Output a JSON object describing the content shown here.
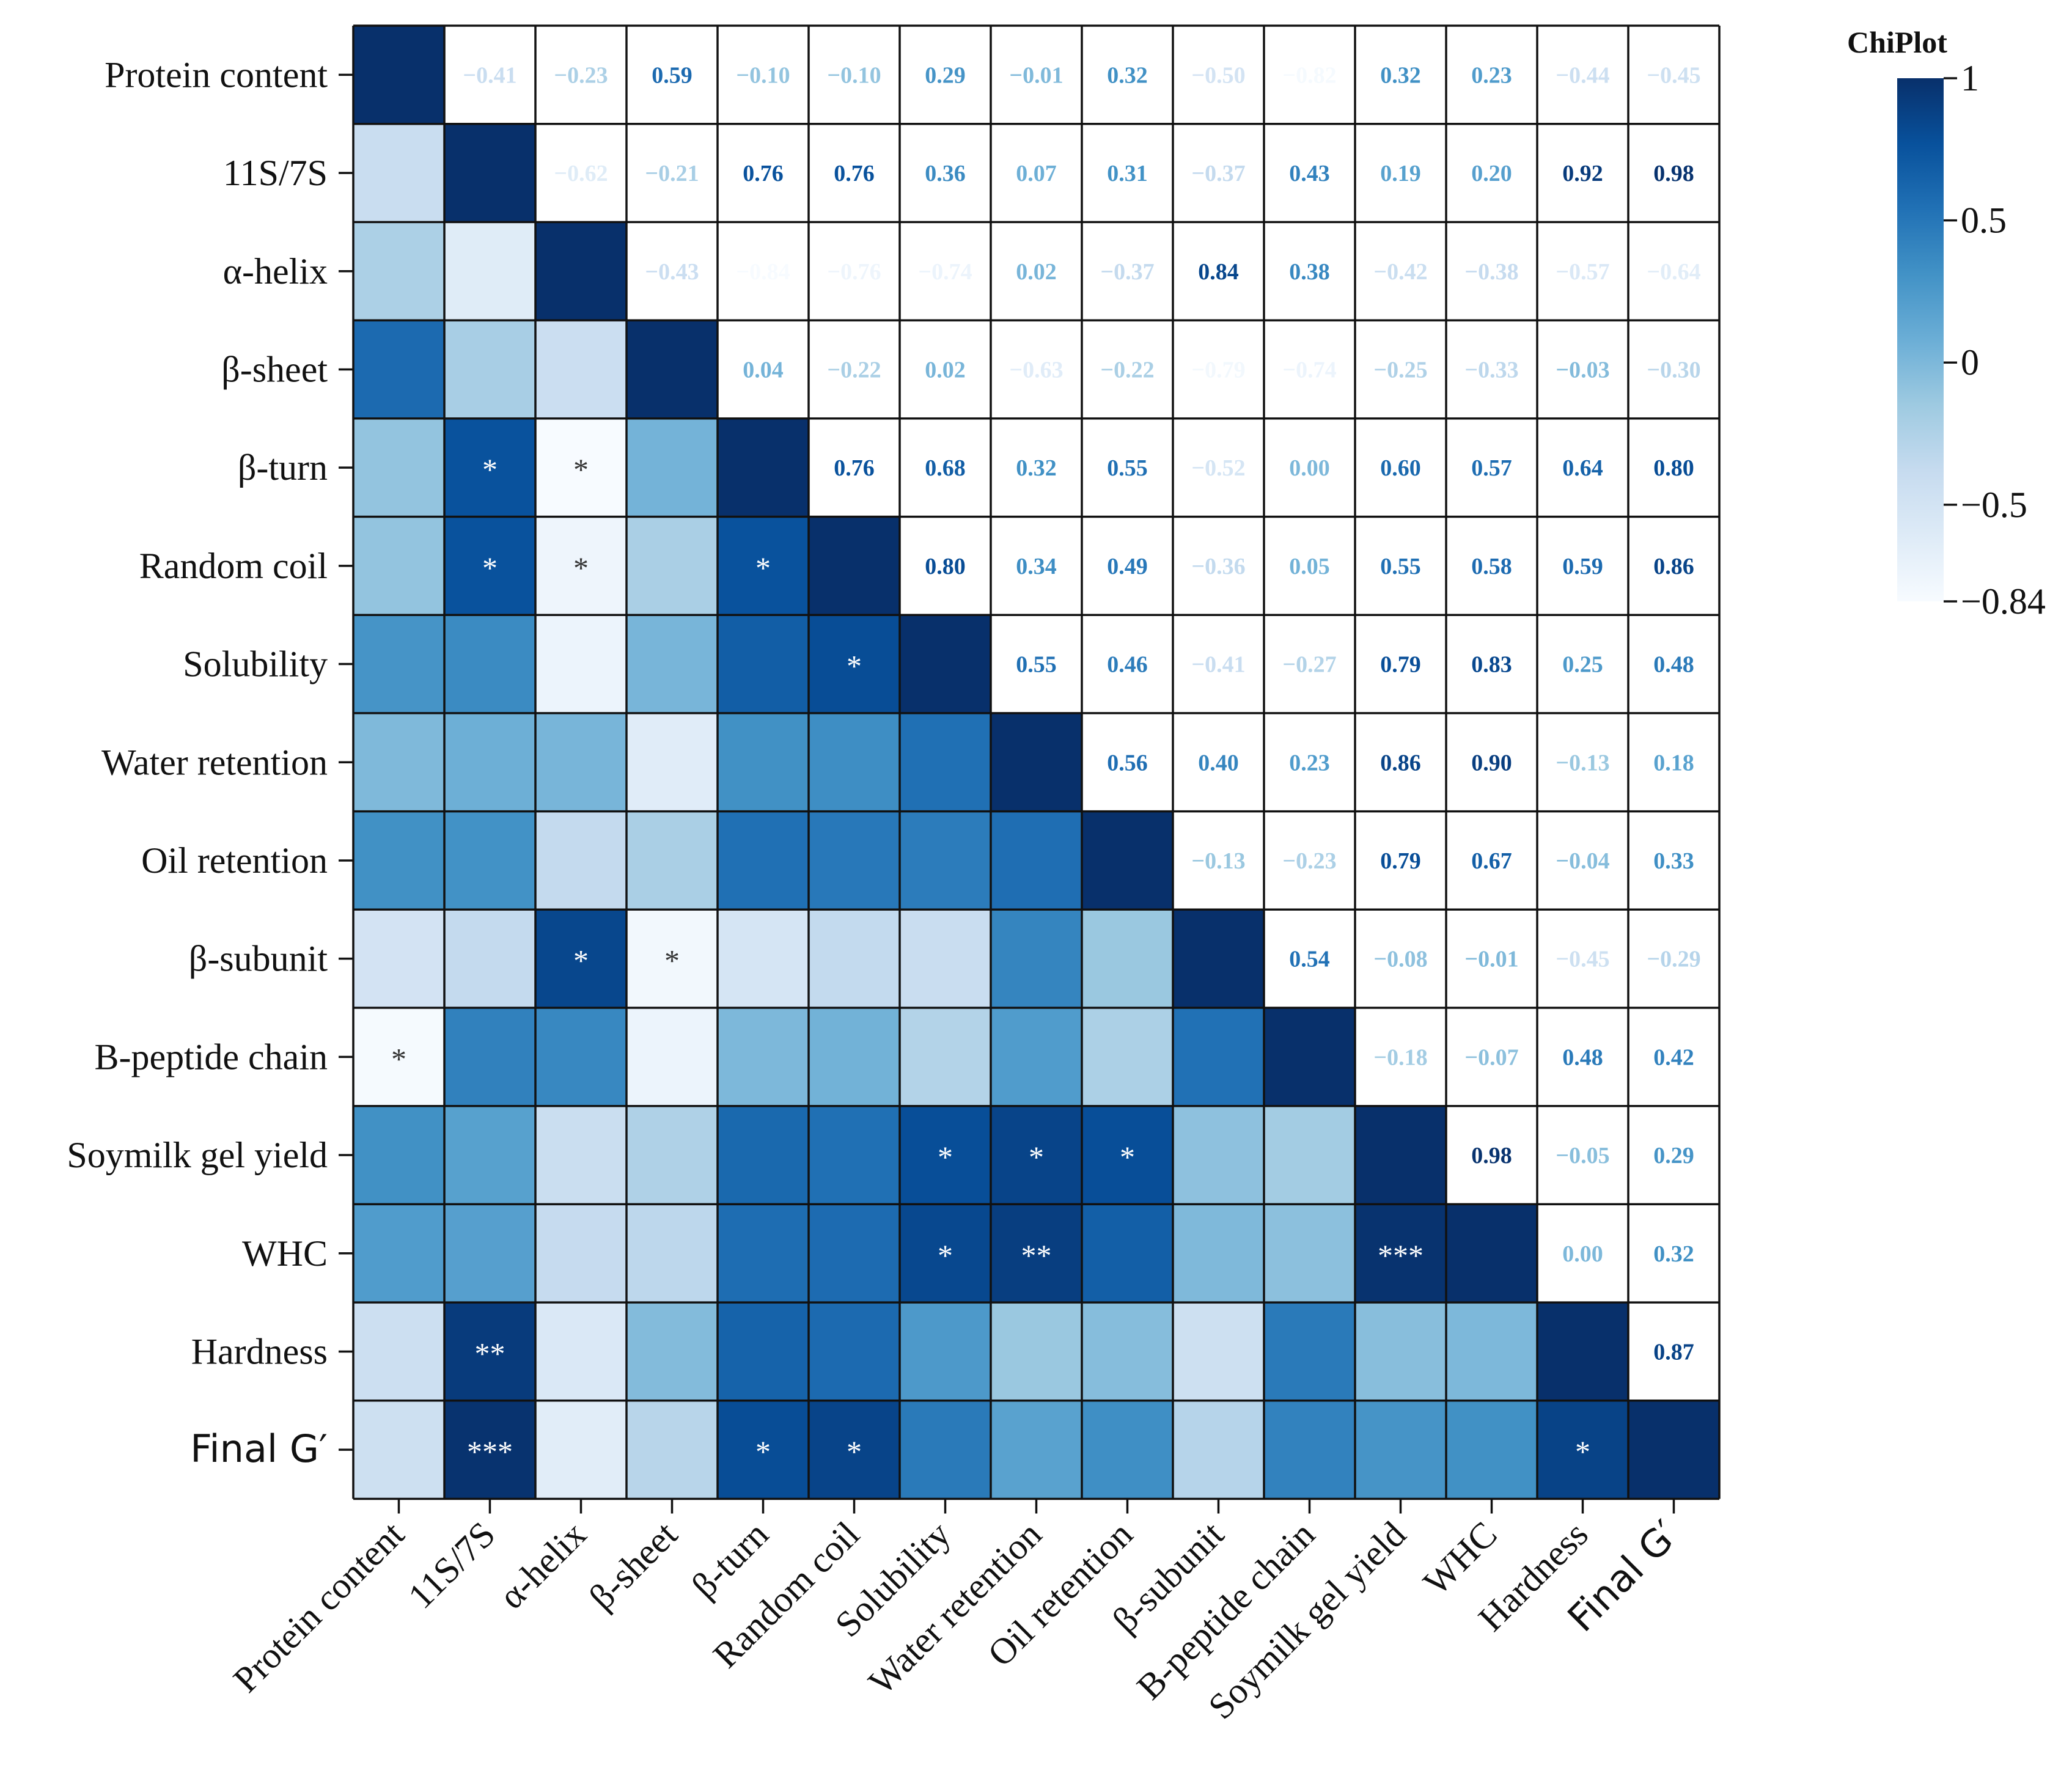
{
  "chart_data": {
    "type": "heatmap",
    "title": "ChiPlot",
    "variables": [
      "Protein content",
      "11S/7S",
      "α-helix",
      "β-sheet",
      "β-turn",
      "Random coil",
      "Solubility",
      "Water retention",
      "Oil retention",
      "β-subunit",
      "B-peptide chain",
      "Soymilk gel yield",
      "WHC",
      "Hardness",
      "Final G′"
    ],
    "upper_triangle_labels": [
      [
        "",
        "−0.41",
        "−0.23",
        "0.59",
        "−0.10",
        "−0.10",
        "0.29",
        "−0.01",
        "0.32",
        "−0.50",
        "−0.82",
        "0.32",
        "0.23",
        "−0.44",
        "−0.45"
      ],
      [
        "",
        "",
        "−0.62",
        "−0.21",
        "0.76",
        "0.76",
        "0.36",
        "0.07",
        "0.31",
        "−0.37",
        "0.43",
        "0.19",
        "0.20",
        "0.92",
        "0.98"
      ],
      [
        "",
        "",
        "",
        "−0.43",
        "−0.84",
        "−0.76",
        "−0.74",
        "0.02",
        "−0.37",
        "0.84",
        "0.38",
        "−0.42",
        "−0.38",
        "−0.57",
        "−0.64"
      ],
      [
        "",
        "",
        "",
        "",
        "0.04",
        "−0.22",
        "0.02",
        "−0.63",
        "−0.22",
        "−0.79",
        "−0.74",
        "−0.25",
        "−0.33",
        "−0.03",
        "−0.30"
      ],
      [
        "",
        "",
        "",
        "",
        "",
        "0.76",
        "0.68",
        "0.32",
        "0.55",
        "−0.52",
        "0.00",
        "0.60",
        "0.57",
        "0.64",
        "0.80"
      ],
      [
        "",
        "",
        "",
        "",
        "",
        "",
        "0.80",
        "0.34",
        "0.49",
        "−0.36",
        "0.05",
        "0.55",
        "0.58",
        "0.59",
        "0.86"
      ],
      [
        "",
        "",
        "",
        "",
        "",
        "",
        "",
        "0.55",
        "0.46",
        "−0.41",
        "−0.27",
        "0.79",
        "0.83",
        "0.25",
        "0.48"
      ],
      [
        "",
        "",
        "",
        "",
        "",
        "",
        "",
        "",
        "0.56",
        "0.40",
        "0.23",
        "0.86",
        "0.90",
        "−0.13",
        "0.18"
      ],
      [
        "",
        "",
        "",
        "",
        "",
        "",
        "",
        "",
        "",
        "−0.13",
        "−0.23",
        "0.79",
        "0.67",
        "−0.04",
        "0.33"
      ],
      [
        "",
        "",
        "",
        "",
        "",
        "",
        "",
        "",
        "",
        "",
        "0.54",
        "−0.08",
        "−0.01",
        "−0.45",
        "−0.29"
      ],
      [
        "",
        "",
        "",
        "",
        "",
        "",
        "",
        "",
        "",
        "",
        "",
        "−0.18",
        "−0.07",
        "0.48",
        "0.42"
      ],
      [
        "",
        "",
        "",
        "",
        "",
        "",
        "",
        "",
        "",
        "",
        "",
        "",
        "0.98",
        "−0.05",
        "0.29"
      ],
      [
        "",
        "",
        "",
        "",
        "",
        "",
        "",
        "",
        "",
        "",
        "",
        "",
        "",
        "0.00",
        "0.32"
      ],
      [
        "",
        "",
        "",
        "",
        "",
        "",
        "",
        "",
        "",
        "",
        "",
        "",
        "",
        "",
        "0.87"
      ],
      [
        "",
        "",
        "",
        "",
        "",
        "",
        "",
        "",
        "",
        "",
        "",
        "",
        "",
        "",
        ""
      ]
    ],
    "significance": [
      [
        "",
        "",
        "",
        "",
        "",
        "",
        "",
        "",
        "",
        "",
        "",
        "",
        "",
        "",
        ""
      ],
      [
        "",
        "",
        "",
        "",
        "",
        "",
        "",
        "",
        "",
        "",
        "",
        "",
        "",
        "",
        ""
      ],
      [
        "",
        "",
        "",
        "",
        "",
        "",
        "",
        "",
        "",
        "",
        "",
        "",
        "",
        "",
        ""
      ],
      [
        "",
        "",
        "",
        "",
        "",
        "",
        "",
        "",
        "",
        "",
        "",
        "",
        "",
        "",
        ""
      ],
      [
        "",
        "*",
        "*",
        "",
        "",
        "",
        "",
        "",
        "",
        "",
        "",
        "",
        "",
        "",
        ""
      ],
      [
        "",
        "*",
        "*",
        "",
        "*",
        "",
        "",
        "",
        "",
        "",
        "",
        "",
        "",
        "",
        ""
      ],
      [
        "",
        "",
        "",
        "",
        "",
        "*",
        "",
        "",
        "",
        "",
        "",
        "",
        "",
        "",
        ""
      ],
      [
        "",
        "",
        "",
        "",
        "",
        "",
        "",
        "",
        "",
        "",
        "",
        "",
        "",
        "",
        ""
      ],
      [
        "",
        "",
        "",
        "",
        "",
        "",
        "",
        "",
        "",
        "",
        "",
        "",
        "",
        "",
        ""
      ],
      [
        "",
        "",
        "*",
        "*",
        "",
        "",
        "",
        "",
        "",
        "",
        "",
        "",
        "",
        "",
        ""
      ],
      [
        "*",
        "",
        "",
        "",
        "",
        "",
        "",
        "",
        "",
        "",
        "",
        "",
        "",
        "",
        ""
      ],
      [
        "",
        "",
        "",
        "",
        "",
        "",
        "*",
        "*",
        "*",
        "",
        "",
        "",
        "",
        "",
        ""
      ],
      [
        "",
        "",
        "",
        "",
        "",
        "",
        "*",
        "**",
        "",
        "",
        "",
        "***",
        "",
        "",
        ""
      ],
      [
        "",
        "**",
        "",
        "",
        "",
        "",
        "",
        "",
        "",
        "",
        "",
        "",
        "",
        "",
        ""
      ],
      [
        "",
        "***",
        "",
        "",
        "*",
        "*",
        "",
        "",
        "",
        "",
        "",
        "",
        "",
        "*",
        ""
      ]
    ],
    "color_scale": {
      "min": -0.84,
      "max": 1,
      "ticks": [
        {
          "value": 1,
          "label": "1"
        },
        {
          "value": 0.5,
          "label": "0.5"
        },
        {
          "value": 0,
          "label": "0"
        },
        {
          "value": -0.5,
          "label": "−0.5"
        },
        {
          "value": -0.84,
          "label": "−0.84"
        }
      ],
      "colors": [
        "#f7fbff",
        "#deebf7",
        "#c6dbef",
        "#9ecae1",
        "#6baed6",
        "#4292c6",
        "#2171b5",
        "#08519c",
        "#08306b"
      ],
      "legend_position": "top-right"
    },
    "x_tick_labels": [
      "Protein content",
      "11S/7S",
      "α-helix",
      "β-sheet",
      "β-turn",
      "Random coil",
      "Solubility",
      "Water retention",
      "Oil retention",
      "β-subunit",
      "B-peptide chain",
      "Soymilk gel yield",
      "WHC",
      "Hardness",
      "Final G′"
    ],
    "y_tick_labels": [
      "Protein content",
      "11S/7S",
      "α-helix",
      "β-sheet",
      "β-turn",
      "Random coil",
      "Solubility",
      "Water retention",
      "Oil retention",
      "β-subunit",
      "B-peptide chain",
      "Soymilk gel yield",
      "WHC",
      "Hardness",
      "Final G′"
    ]
  }
}
